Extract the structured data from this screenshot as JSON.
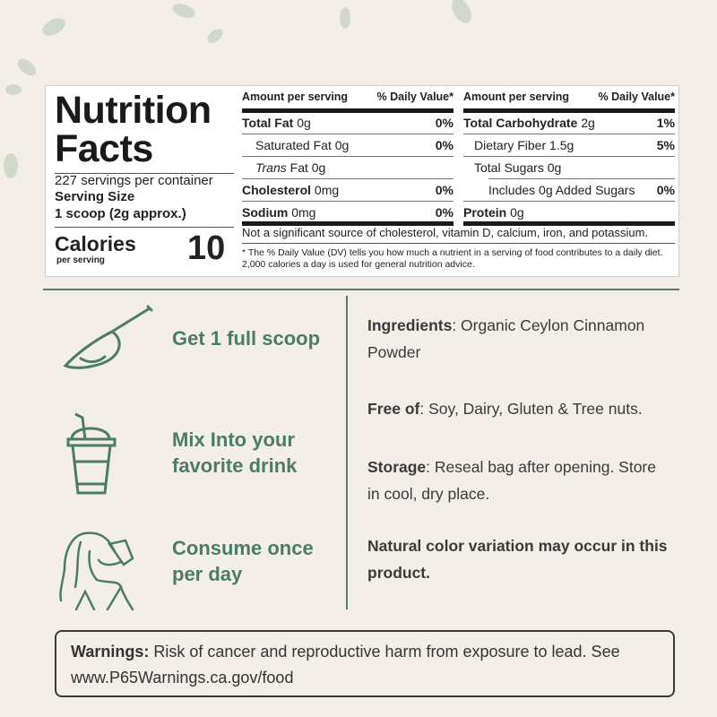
{
  "nutrition": {
    "title_line1": "Nutrition",
    "title_line2": "Facts",
    "servings": "227 servings per container",
    "serving_size_label": "Serving Size",
    "serving_size_value": "1 scoop (2g approx.)",
    "calories_label": "Calories",
    "calories_sub": "per serving",
    "calories_value": "10",
    "header_amount": "Amount per serving",
    "header_dv": "% Daily Value*",
    "left_rows": [
      {
        "name": "Total Fat",
        "amount": "0g",
        "dv": "0%"
      },
      {
        "name": "Saturated Fat",
        "amount": "0g",
        "dv": "0%"
      },
      {
        "name": "Trans",
        "amount": "Fat 0g",
        "dv": ""
      },
      {
        "name": "Cholesterol",
        "amount": "0mg",
        "dv": "0%"
      },
      {
        "name": "Sodium",
        "amount": "0mg",
        "dv": "0%"
      }
    ],
    "right_rows": [
      {
        "name": "Total Carbohydrate",
        "amount": "2g",
        "dv": "1%"
      },
      {
        "name": "Dietary Fiber",
        "amount": "1.5g",
        "dv": "5%"
      },
      {
        "name": "Total Sugars",
        "amount": "0g",
        "dv": ""
      },
      {
        "name": "Includes 0g Added Sugars",
        "amount": "",
        "dv": "0%"
      },
      {
        "name": "Protein",
        "amount": "0g",
        "dv": ""
      }
    ],
    "not_significant": "Not a significant source of cholesterol, vitamin D, calcium, iron, and potassium.",
    "footnote": "* The % Daily Value (DV) tells you how much a nutrient in a serving of food contributes to a daily diet. 2,000 calories a day is used for general nutrition advice."
  },
  "steps": [
    {
      "icon": "scoop-icon",
      "line1": "Get 1 full scoop",
      "line2": ""
    },
    {
      "icon": "drink-cup-icon",
      "line1": "Mix Into your",
      "line2": "favorite drink"
    },
    {
      "icon": "person-drinking-icon",
      "line1": "Consume once",
      "line2": "per day"
    }
  ],
  "info": {
    "ingredients_label": "Ingredients",
    "ingredients_value": ": Organic Ceylon Cinnamon Powder",
    "free_label": "Free of",
    "free_value": ": Soy, Dairy, Gluten & Tree nuts.",
    "storage_label": "Storage",
    "storage_value": ": Reseal bag after opening. Store in cool, dry place.",
    "variation": "Natural color variation may occur in this product."
  },
  "warning": {
    "label": "Warnings:",
    "text": " Risk of cancer and reproductive harm from exposure to lead. See www.P65Warnings.ca.gov/food"
  },
  "colors": {
    "background": "#f4eee9",
    "accent_green": "#4d7c65"
  }
}
